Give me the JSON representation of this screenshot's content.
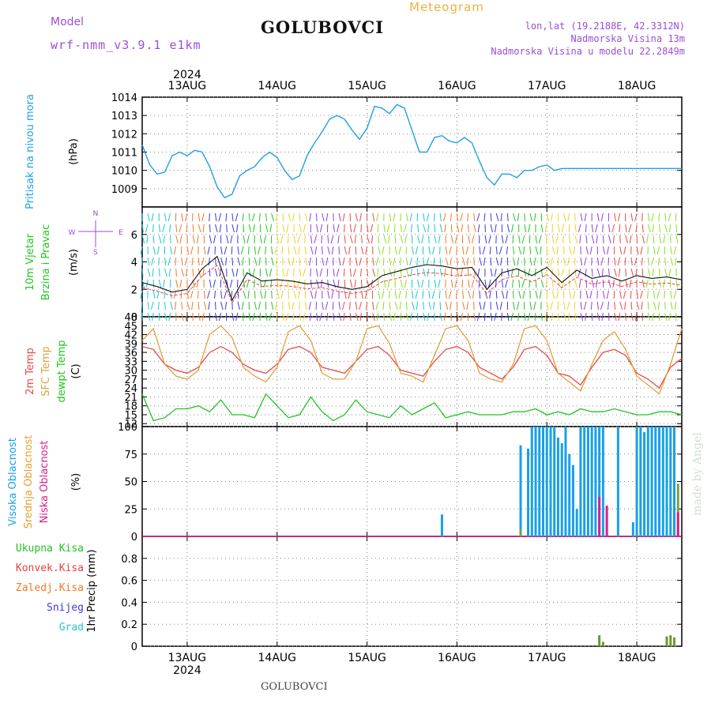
{
  "header": {
    "model_label": "Model",
    "model_version": "wrf-nmm_v3.9.1  e1km",
    "station": "GOLUBOVCI",
    "product": "Meteogram",
    "lonlat": "lon,lat (19.2188E, 42.3312N)",
    "elevation": "Nadmorska Visina 13m",
    "model_elevation": "Nadmorska Visina u modelu 22.2849m",
    "year": "2024",
    "footer_station": "GOLUBOVCI",
    "credit": "made by Angel"
  },
  "colors": {
    "pressure": "#1fa0e6",
    "wind_label": "#22c422",
    "wind_dir_label": "#9a4fd6",
    "temp2m": "#e84848",
    "sfc_temp": "#e0a040",
    "dewpt": "#22c422",
    "cloud_high": "#18a0e8",
    "cloud_mid": "#e8a030",
    "cloud_low": "#d8208a",
    "precip_total": "#22c422",
    "precip_conv": "#e84040",
    "precip_frozen": "#f07828",
    "snow": "#3a3ae0",
    "graupel": "#20c8c8",
    "header_purple": "#9a4fd6",
    "header_orange": "#f0b040"
  },
  "chart_data": [
    {
      "type": "line",
      "name": "pressure",
      "ylabel": "Pritisak na nivou mora",
      "unit": "(hPa)",
      "x_ticks": [
        "13AUG",
        "14AUG",
        "15AUG",
        "16AUG",
        "17AUG",
        "18AUG"
      ],
      "x_hours_range": [
        0,
        144
      ],
      "ylim": [
        1008,
        1014
      ],
      "yticks": [
        1009,
        1010,
        1011,
        1012,
        1013,
        1014
      ],
      "series": [
        {
          "x": [
            0,
            2,
            4,
            6,
            8,
            10,
            12,
            14,
            16,
            18,
            20,
            22,
            24,
            26,
            28,
            30,
            32,
            34,
            36,
            38,
            40,
            42,
            44,
            46,
            48,
            50,
            52,
            54,
            56,
            58,
            60,
            62,
            64,
            66,
            68,
            70,
            72,
            74,
            76,
            78,
            80,
            82,
            84,
            86,
            88,
            90,
            92,
            94,
            96,
            98,
            100,
            102,
            104,
            106,
            108,
            110,
            112,
            114,
            116,
            118,
            120,
            122,
            124,
            126,
            128,
            130,
            132,
            134,
            136,
            138,
            140,
            142,
            144
          ],
          "values": [
            1011.4,
            1010.3,
            1009.8,
            1009.9,
            1010.8,
            1011.0,
            1010.8,
            1011.1,
            1011.0,
            1010.2,
            1009.1,
            1008.5,
            1008.7,
            1009.7,
            1010.0,
            1010.2,
            1010.7,
            1011.0,
            1010.7,
            1010.0,
            1009.5,
            1009.7,
            1010.8,
            1011.5,
            1012.1,
            1012.8,
            1013.0,
            1012.8,
            1012.2,
            1011.7,
            1012.3,
            1013.5,
            1013.4,
            1013.1,
            1013.6,
            1013.4,
            1012.2,
            1011.0,
            1011.0,
            1011.8,
            1011.9,
            1011.6,
            1011.5,
            1011.8,
            1011.5,
            1010.5,
            1009.6,
            1009.2,
            1009.8,
            1009.8,
            1009.6,
            1010.0,
            1010.0,
            1010.2,
            1010.3,
            1010.0,
            1010.1,
            1010.1,
            1010.1,
            1010.1,
            1010.1,
            1010.1,
            1010.1,
            1010.1,
            1010.1,
            1010.1,
            1010.1,
            1010.1,
            1010.1,
            1010.1,
            1010.1,
            1010.1,
            1010.1
          ]
        }
      ]
    },
    {
      "type": "line",
      "name": "wind",
      "ylabel": "10m Vjetar Brzina i Pravac",
      "unit": "(m/s)",
      "compass": {
        "n": "N",
        "s": "S",
        "e": "E",
        "w": "W"
      },
      "ylim": [
        0,
        8
      ],
      "yticks": [
        0,
        2,
        4,
        6
      ],
      "series": [
        {
          "name": "speed",
          "x": [
            0,
            4,
            8,
            12,
            16,
            20,
            24,
            28,
            32,
            36,
            40,
            44,
            48,
            52,
            56,
            60,
            64,
            68,
            72,
            76,
            80,
            84,
            88,
            92,
            96,
            100,
            104,
            108,
            112,
            116,
            120,
            124,
            128,
            132,
            136,
            140,
            144
          ],
          "values": [
            2.5,
            2.2,
            1.8,
            2.0,
            3.5,
            4.4,
            1.2,
            3.2,
            2.6,
            2.7,
            2.6,
            2.4,
            2.5,
            2.2,
            2.0,
            2.2,
            3.0,
            3.3,
            3.6,
            3.8,
            3.7,
            3.5,
            3.6,
            2.0,
            3.2,
            3.5,
            3.0,
            3.6,
            2.5,
            3.4,
            2.8,
            3.0,
            2.6,
            3.0,
            2.8,
            2.9,
            2.7
          ]
        }
      ]
    },
    {
      "type": "line",
      "name": "temperature",
      "ylabel_lines": [
        "2m Temp",
        "SFC Temp",
        "dewpt Temp"
      ],
      "unit": "(C)",
      "ylim": [
        11,
        48
      ],
      "yticks": [
        12,
        15,
        18,
        21,
        24,
        27,
        30,
        33,
        36,
        39,
        42,
        45,
        48
      ],
      "x": [
        0,
        3,
        6,
        9,
        12,
        15,
        18,
        21,
        24,
        27,
        30,
        33,
        36,
        39,
        42,
        45,
        48,
        51,
        54,
        57,
        60,
        63,
        66,
        69,
        72,
        75,
        78,
        81,
        84,
        87,
        90,
        93,
        96,
        99,
        102,
        105,
        108,
        111,
        114,
        117,
        120,
        123,
        126,
        129,
        132,
        135,
        138,
        141,
        144
      ],
      "series": [
        {
          "name": "2m Temp",
          "values": [
            38,
            37,
            32,
            30,
            29,
            31,
            36,
            38,
            36,
            32,
            30,
            29,
            32,
            37,
            38,
            36,
            31,
            30,
            29,
            33,
            37,
            38,
            35,
            30,
            29,
            28,
            33,
            37,
            38,
            36,
            31,
            29,
            27,
            31,
            37,
            38,
            35,
            29,
            28,
            25,
            31,
            36,
            37,
            35,
            29,
            27,
            24,
            31,
            34
          ]
        },
        {
          "name": "SFC Temp",
          "values": [
            40,
            44,
            32,
            28,
            27,
            30,
            42,
            45,
            41,
            31,
            28,
            26,
            31,
            43,
            45,
            40,
            29,
            27,
            27,
            33,
            44,
            45,
            39,
            29,
            28,
            26,
            35,
            44,
            45,
            40,
            29,
            27,
            26,
            32,
            44,
            45,
            40,
            29,
            26,
            23,
            32,
            40,
            43,
            37,
            28,
            25,
            22,
            32,
            44
          ]
        },
        {
          "name": "dewpt Temp",
          "values": [
            22,
            13,
            14,
            17,
            17,
            18,
            16,
            20,
            15,
            15,
            14,
            22,
            18,
            14,
            15,
            21,
            16,
            13,
            15,
            20,
            16,
            15,
            14,
            18,
            15,
            17,
            19,
            14,
            15,
            16,
            15,
            15,
            15,
            16,
            16,
            17,
            15,
            16,
            15,
            17,
            16,
            16,
            17,
            16,
            15,
            15,
            16,
            16,
            15
          ]
        }
      ]
    },
    {
      "type": "bar",
      "name": "cloud_cover",
      "ylabel_lines": [
        "Visoka Oblacnost",
        "Srednja Oblacnost",
        "Niska Oblacnost"
      ],
      "unit": "(%)",
      "ylim": [
        0,
        100
      ],
      "yticks": [
        0,
        25,
        50,
        75,
        100
      ],
      "series": [
        {
          "name": "Visoka Oblacnost",
          "x": [
            80,
            101,
            103,
            104,
            105,
            106,
            107,
            108,
            109,
            110,
            111,
            112,
            113,
            114,
            115,
            116,
            117,
            118,
            119,
            120,
            121,
            122,
            123,
            124,
            127,
            131,
            132,
            133,
            134,
            135,
            136,
            137,
            138,
            139,
            140,
            141,
            142
          ],
          "values": [
            20,
            83,
            80,
            100,
            100,
            100,
            100,
            100,
            100,
            100,
            90,
            85,
            100,
            75,
            65,
            25,
            100,
            100,
            100,
            100,
            100,
            100,
            100,
            0,
            100,
            13,
            100,
            100,
            95,
            100,
            100,
            100,
            100,
            100,
            100,
            100,
            100
          ]
        },
        {
          "name": "Srednja Oblacnost",
          "x": [
            101,
            143
          ],
          "values": [
            6,
            48
          ]
        },
        {
          "name": "Niska Oblacnost",
          "x": [
            122,
            124,
            143
          ],
          "values": [
            36,
            28,
            22
          ]
        }
      ]
    },
    {
      "type": "bar",
      "name": "precipitation",
      "ylabel_lines": [
        "Ukupna Kisa",
        "Konvek.Kisa",
        "Zaledj.Kisa",
        "Snijeg",
        "Grad"
      ],
      "unit": "1hr Precip (mm)",
      "ylim": [
        0,
        1.0
      ],
      "yticks": [
        0,
        0.2,
        0.4,
        0.6,
        0.8
      ],
      "series": [
        {
          "name": "Ukupna Kisa",
          "x": [
            122,
            123,
            140,
            141,
            142
          ],
          "values": [
            0.1,
            0.04,
            0.09,
            0.1,
            0.08
          ]
        }
      ]
    }
  ]
}
